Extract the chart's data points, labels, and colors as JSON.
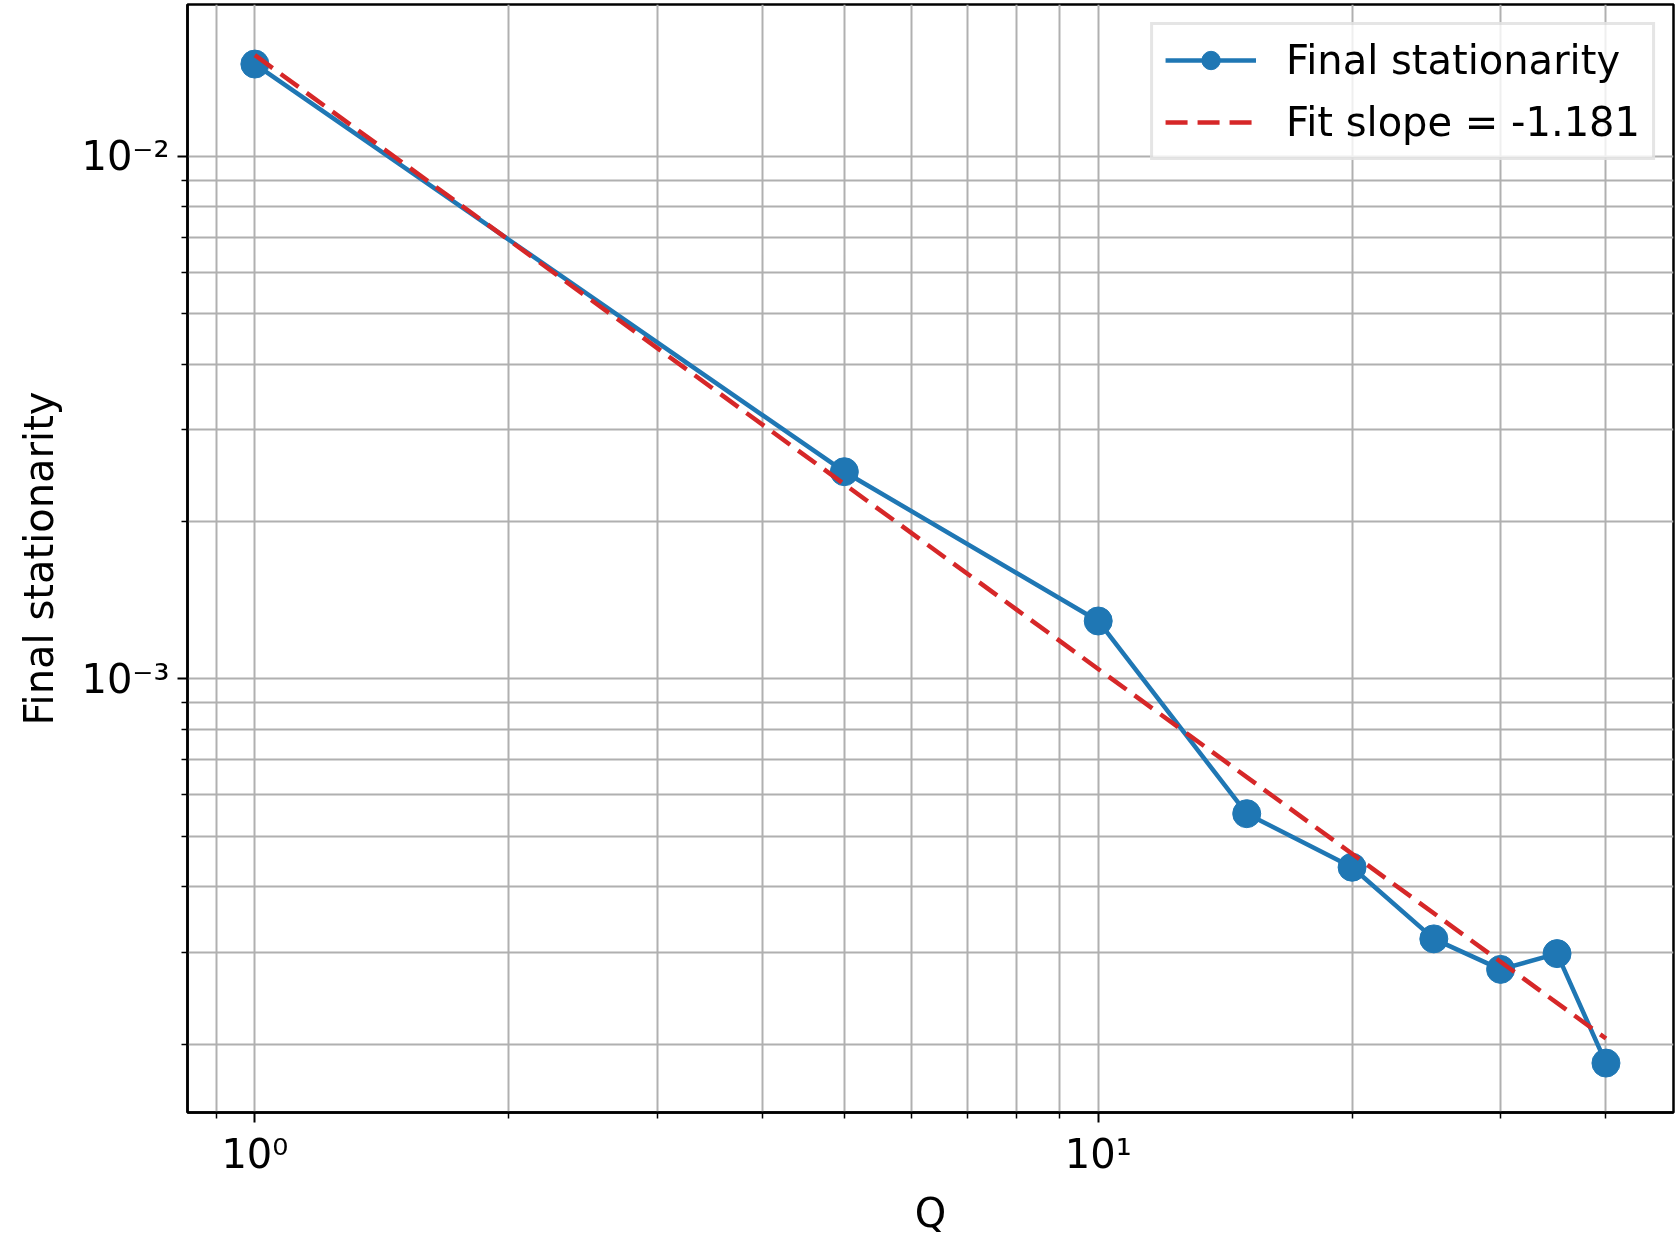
{
  "chart_data": {
    "type": "line",
    "xlabel": "Q",
    "ylabel": "Final stationarity",
    "x": [
      1,
      5,
      10,
      15,
      20,
      25,
      30,
      35,
      40
    ],
    "series": [
      {
        "name": "Final stationarity",
        "color": "#1f77b4",
        "values": [
          0.015,
          0.00249,
          0.00129,
          0.000552,
          0.000436,
          0.000318,
          0.000278,
          0.000298,
          0.000184
        ]
      },
      {
        "name": "Fit slope = -1.181",
        "color": "#d62728",
        "type": "line",
        "x": [
          1,
          40
        ],
        "values": [
          0.0156,
          0.000205
        ],
        "line_style": "dashed",
        "marker": "none"
      }
    ],
    "xlim": [
      0.832,
      48.1
    ],
    "ylim": [
      0.000148,
      0.0195
    ],
    "xticks": [
      {
        "value": 0.9,
        "label": null
      },
      {
        "value": 1,
        "label": "10⁰"
      },
      {
        "value": 2,
        "label": null
      },
      {
        "value": 3,
        "label": null
      },
      {
        "value": 4,
        "label": null
      },
      {
        "value": 5,
        "label": null
      },
      {
        "value": 6,
        "label": null
      },
      {
        "value": 7,
        "label": null
      },
      {
        "value": 8,
        "label": null
      },
      {
        "value": 9,
        "label": null
      },
      {
        "value": 10,
        "label": "10¹"
      },
      {
        "value": 20,
        "label": null
      },
      {
        "value": 30,
        "label": null
      },
      {
        "value": 40,
        "label": null
      }
    ],
    "yticks": [
      {
        "value": 0.0002,
        "label": null
      },
      {
        "value": 0.0003,
        "label": null
      },
      {
        "value": 0.0004,
        "label": null
      },
      {
        "value": 0.0005,
        "label": null
      },
      {
        "value": 0.0006,
        "label": null
      },
      {
        "value": 0.0007,
        "label": null
      },
      {
        "value": 0.0008,
        "label": null
      },
      {
        "value": 0.0009,
        "label": null
      },
      {
        "value": 0.001,
        "label": "10⁻³"
      },
      {
        "value": 0.002,
        "label": null
      },
      {
        "value": 0.003,
        "label": null
      },
      {
        "value": 0.004,
        "label": null
      },
      {
        "value": 0.005,
        "label": null
      },
      {
        "value": 0.006,
        "label": null
      },
      {
        "value": 0.007,
        "label": null
      },
      {
        "value": 0.008,
        "label": null
      },
      {
        "value": 0.009,
        "label": null
      },
      {
        "value": 0.01,
        "label": "10⁻²"
      }
    ],
    "log": "xy",
    "grid": true,
    "legend": "top right",
    "marker": "circle",
    "line_style": "solid"
  }
}
